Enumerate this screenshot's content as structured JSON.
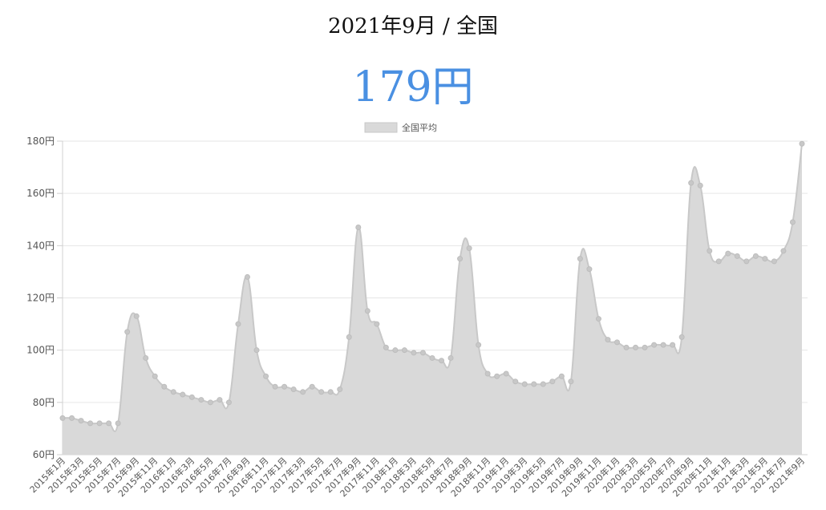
{
  "header": {
    "title": "2021年9月 / 全国",
    "price": "179円"
  },
  "chart_data": {
    "type": "area",
    "title": "",
    "xlabel": "",
    "ylabel": "",
    "ylim": [
      60,
      180
    ],
    "y_ticks": [
      "60円",
      "80円",
      "100円",
      "120円",
      "140円",
      "160円",
      "180円"
    ],
    "legend_position": "top-center",
    "grid": true,
    "colors": {
      "fill": "#d9d9d9",
      "line": "#c8c8c8",
      "point": "#c8c8c8"
    },
    "x": [
      "2015年1月",
      "2015年2月",
      "2015年3月",
      "2015年4月",
      "2015年5月",
      "2015年6月",
      "2015年7月",
      "2015年8月",
      "2015年9月",
      "2015年10月",
      "2015年11月",
      "2015年12月",
      "2016年1月",
      "2016年2月",
      "2016年3月",
      "2016年4月",
      "2016年5月",
      "2016年6月",
      "2016年7月",
      "2016年8月",
      "2016年9月",
      "2016年10月",
      "2016年11月",
      "2016年12月",
      "2017年1月",
      "2017年2月",
      "2017年3月",
      "2017年4月",
      "2017年5月",
      "2017年6月",
      "2017年7月",
      "2017年8月",
      "2017年9月",
      "2017年10月",
      "2017年11月",
      "2017年12月",
      "2018年1月",
      "2018年2月",
      "2018年3月",
      "2018年4月",
      "2018年5月",
      "2018年6月",
      "2018年7月",
      "2018年8月",
      "2018年9月",
      "2018年10月",
      "2018年11月",
      "2018年12月",
      "2019年1月",
      "2019年2月",
      "2019年3月",
      "2019年4月",
      "2019年5月",
      "2019年6月",
      "2019年7月",
      "2019年8月",
      "2019年9月",
      "2019年10月",
      "2019年11月",
      "2019年12月",
      "2020年1月",
      "2020年2月",
      "2020年3月",
      "2020年4月",
      "2020年5月",
      "2020年6月",
      "2020年7月",
      "2020年8月",
      "2020年9月",
      "2020年10月",
      "2020年11月",
      "2020年12月",
      "2021年1月",
      "2021年2月",
      "2021年3月",
      "2021年4月",
      "2021年5月",
      "2021年6月",
      "2021年7月",
      "2021年8月",
      "2021年9月"
    ],
    "series": [
      {
        "name": "全国平均",
        "values": [
          74,
          74,
          73,
          72,
          72,
          72,
          72,
          107,
          113,
          97,
          90,
          86,
          84,
          83,
          82,
          81,
          80,
          81,
          80,
          110,
          128,
          100,
          90,
          86,
          86,
          85,
          84,
          86,
          84,
          84,
          85,
          105,
          147,
          115,
          110,
          101,
          100,
          100,
          99,
          99,
          97,
          96,
          97,
          135,
          139,
          102,
          91,
          90,
          91,
          88,
          87,
          87,
          87,
          88,
          90,
          88,
          135,
          131,
          112,
          104,
          103,
          101,
          101,
          101,
          102,
          102,
          102,
          105,
          164,
          163,
          138,
          134,
          137,
          136,
          134,
          136,
          135,
          134,
          138,
          149,
          179
        ]
      }
    ]
  }
}
